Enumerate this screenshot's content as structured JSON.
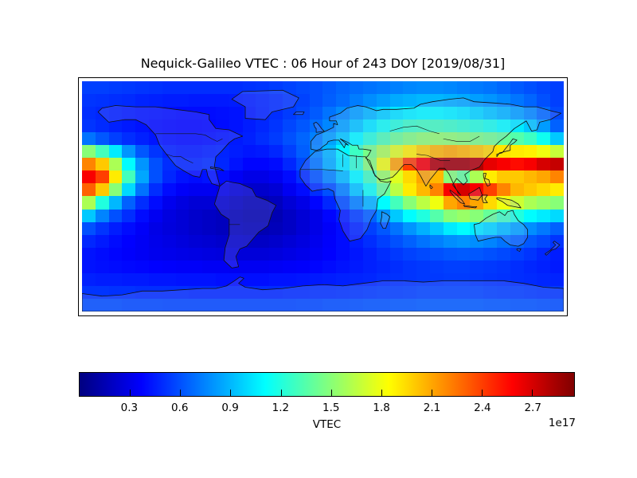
{
  "figure": {
    "background": "#ffffff",
    "frame_color": "#000000",
    "text_color": "#000000"
  },
  "chart_data": {
    "type": "heatmap",
    "title": "Nequick-Galileo VTEC : 06 Hour of 243 DOY [2019/08/31]",
    "colormap": "jet",
    "legend_position": "bottom-horizontal-colorbar",
    "colorbar_label": "VTEC",
    "colorbar_exponent": "1e17",
    "colorbar_ticks": [
      0.3,
      0.6,
      0.9,
      1.2,
      1.5,
      1.8,
      2.1,
      2.4,
      2.7
    ],
    "vmin": 0.0,
    "vmax": 2.95,
    "lon_range": [
      -180,
      180
    ],
    "lat_range": [
      90,
      -90
    ],
    "grid_overlay": "world-coastlines-and-borders",
    "grid": {
      "n_lon": 36,
      "n_lat": 18,
      "lat_order": "north-to-south",
      "values_unit_multiplier": "1e17",
      "values": [
        [
          0.55,
          0.55,
          0.54,
          0.53,
          0.52,
          0.51,
          0.5,
          0.5,
          0.5,
          0.5,
          0.5,
          0.5,
          0.51,
          0.52,
          0.54,
          0.56,
          0.58,
          0.6,
          0.63,
          0.66,
          0.68,
          0.7,
          0.72,
          0.74,
          0.76,
          0.77,
          0.77,
          0.76,
          0.74,
          0.72,
          0.7,
          0.67,
          0.63,
          0.6,
          0.57,
          0.55
        ],
        [
          0.52,
          0.51,
          0.5,
          0.49,
          0.47,
          0.46,
          0.45,
          0.45,
          0.44,
          0.44,
          0.44,
          0.45,
          0.46,
          0.48,
          0.5,
          0.53,
          0.56,
          0.6,
          0.64,
          0.68,
          0.73,
          0.78,
          0.82,
          0.86,
          0.88,
          0.9,
          0.9,
          0.88,
          0.86,
          0.83,
          0.8,
          0.76,
          0.71,
          0.66,
          0.6,
          0.55
        ],
        [
          0.5,
          0.48,
          0.46,
          0.44,
          0.43,
          0.42,
          0.41,
          0.4,
          0.4,
          0.4,
          0.41,
          0.42,
          0.44,
          0.47,
          0.5,
          0.54,
          0.58,
          0.63,
          0.7,
          0.77,
          0.84,
          0.91,
          0.98,
          1.04,
          1.08,
          1.1,
          1.1,
          1.08,
          1.05,
          1.0,
          0.95,
          0.9,
          0.84,
          0.77,
          0.68,
          0.58
        ],
        [
          0.52,
          0.49,
          0.46,
          0.44,
          0.42,
          0.4,
          0.39,
          0.38,
          0.38,
          0.39,
          0.4,
          0.42,
          0.45,
          0.48,
          0.52,
          0.57,
          0.62,
          0.68,
          0.76,
          0.85,
          0.95,
          1.05,
          1.15,
          1.22,
          1.28,
          1.3,
          1.3,
          1.28,
          1.25,
          1.22,
          1.18,
          1.12,
          1.05,
          0.95,
          0.82,
          0.65
        ],
        [
          0.7,
          0.62,
          0.55,
          0.5,
          0.46,
          0.43,
          0.41,
          0.4,
          0.4,
          0.41,
          0.43,
          0.44,
          0.46,
          0.5,
          0.54,
          0.6,
          0.66,
          0.74,
          0.84,
          0.96,
          1.1,
          1.22,
          1.33,
          1.42,
          1.48,
          1.52,
          1.53,
          1.52,
          1.5,
          1.47,
          1.44,
          1.4,
          1.35,
          1.28,
          1.15,
          0.95
        ],
        [
          1.5,
          1.3,
          1.05,
          0.8,
          0.62,
          0.52,
          0.46,
          0.44,
          0.44,
          0.46,
          0.47,
          0.45,
          0.43,
          0.44,
          0.48,
          0.55,
          0.64,
          0.76,
          0.9,
          1.08,
          1.28,
          1.45,
          1.6,
          1.75,
          1.88,
          1.98,
          2.05,
          2.08,
          2.05,
          2.0,
          1.95,
          1.92,
          1.9,
          1.88,
          1.8,
          1.68
        ],
        [
          2.2,
          2.0,
          1.6,
          1.1,
          0.8,
          0.6,
          0.5,
          0.48,
          0.48,
          0.5,
          0.48,
          0.42,
          0.38,
          0.38,
          0.4,
          0.48,
          0.58,
          0.72,
          0.88,
          1.05,
          1.25,
          1.5,
          1.8,
          2.1,
          2.4,
          2.6,
          2.8,
          2.85,
          2.85,
          2.8,
          2.65,
          2.6,
          2.55,
          2.6,
          2.7,
          2.75
        ],
        [
          2.6,
          2.4,
          1.9,
          1.3,
          0.85,
          0.6,
          0.48,
          0.42,
          0.4,
          0.42,
          0.4,
          0.34,
          0.3,
          0.3,
          0.33,
          0.4,
          0.5,
          0.62,
          0.76,
          0.92,
          1.1,
          1.3,
          1.55,
          1.75,
          1.95,
          2.1,
          2.05,
          1.5,
          1.4,
          1.6,
          1.9,
          2.0,
          2.0,
          2.05,
          2.1,
          2.2
        ],
        [
          2.3,
          2.0,
          1.5,
          1.0,
          0.7,
          0.5,
          0.4,
          0.35,
          0.33,
          0.33,
          0.3,
          0.25,
          0.22,
          0.22,
          0.25,
          0.33,
          0.4,
          0.5,
          0.6,
          0.75,
          0.95,
          1.15,
          1.4,
          1.65,
          1.9,
          2.05,
          2.2,
          2.6,
          2.7,
          2.6,
          2.4,
          2.2,
          2.05,
          2.0,
          1.95,
          1.9
        ],
        [
          1.6,
          1.2,
          0.9,
          0.65,
          0.5,
          0.4,
          0.32,
          0.28,
          0.25,
          0.25,
          0.22,
          0.18,
          0.15,
          0.15,
          0.18,
          0.25,
          0.3,
          0.38,
          0.48,
          0.6,
          0.75,
          0.9,
          1.1,
          1.3,
          1.5,
          1.65,
          1.8,
          2.1,
          2.2,
          2.1,
          1.95,
          1.8,
          1.7,
          1.6,
          1.55,
          1.5
        ],
        [
          0.95,
          0.75,
          0.6,
          0.5,
          0.4,
          0.33,
          0.28,
          0.25,
          0.22,
          0.2,
          0.18,
          0.15,
          0.13,
          0.13,
          0.15,
          0.2,
          0.25,
          0.3,
          0.38,
          0.45,
          0.55,
          0.65,
          0.8,
          0.95,
          1.1,
          1.2,
          1.35,
          1.5,
          1.55,
          1.5,
          1.4,
          1.3,
          1.2,
          1.1,
          1.05,
          1.0
        ],
        [
          0.6,
          0.52,
          0.45,
          0.4,
          0.35,
          0.3,
          0.27,
          0.25,
          0.22,
          0.2,
          0.18,
          0.17,
          0.15,
          0.15,
          0.17,
          0.2,
          0.25,
          0.3,
          0.35,
          0.4,
          0.48,
          0.55,
          0.62,
          0.7,
          0.8,
          0.88,
          0.95,
          1.05,
          1.1,
          1.05,
          1.0,
          0.92,
          0.85,
          0.78,
          0.72,
          0.65
        ],
        [
          0.48,
          0.44,
          0.4,
          0.37,
          0.34,
          0.31,
          0.29,
          0.27,
          0.25,
          0.24,
          0.22,
          0.21,
          0.2,
          0.2,
          0.22,
          0.25,
          0.28,
          0.32,
          0.36,
          0.4,
          0.45,
          0.5,
          0.55,
          0.6,
          0.65,
          0.7,
          0.74,
          0.78,
          0.8,
          0.78,
          0.75,
          0.7,
          0.66,
          0.62,
          0.58,
          0.52
        ],
        [
          0.42,
          0.4,
          0.38,
          0.36,
          0.34,
          0.32,
          0.31,
          0.3,
          0.29,
          0.28,
          0.27,
          0.26,
          0.26,
          0.26,
          0.27,
          0.29,
          0.31,
          0.34,
          0.37,
          0.4,
          0.43,
          0.46,
          0.5,
          0.53,
          0.56,
          0.58,
          0.6,
          0.62,
          0.63,
          0.62,
          0.6,
          0.58,
          0.55,
          0.52,
          0.48,
          0.45
        ],
        [
          0.42,
          0.41,
          0.4,
          0.39,
          0.38,
          0.37,
          0.36,
          0.35,
          0.35,
          0.34,
          0.34,
          0.33,
          0.33,
          0.33,
          0.34,
          0.35,
          0.36,
          0.38,
          0.4,
          0.42,
          0.44,
          0.46,
          0.48,
          0.5,
          0.52,
          0.53,
          0.54,
          0.55,
          0.55,
          0.54,
          0.53,
          0.52,
          0.5,
          0.48,
          0.46,
          0.44
        ],
        [
          0.46,
          0.45,
          0.45,
          0.44,
          0.44,
          0.43,
          0.43,
          0.42,
          0.42,
          0.42,
          0.41,
          0.41,
          0.41,
          0.41,
          0.42,
          0.42,
          0.43,
          0.44,
          0.45,
          0.46,
          0.47,
          0.48,
          0.5,
          0.51,
          0.52,
          0.53,
          0.53,
          0.54,
          0.54,
          0.53,
          0.52,
          0.51,
          0.5,
          0.49,
          0.48,
          0.47
        ],
        [
          0.52,
          0.52,
          0.51,
          0.51,
          0.5,
          0.5,
          0.5,
          0.5,
          0.49,
          0.49,
          0.49,
          0.49,
          0.49,
          0.49,
          0.49,
          0.5,
          0.5,
          0.51,
          0.51,
          0.52,
          0.53,
          0.54,
          0.55,
          0.55,
          0.56,
          0.57,
          0.57,
          0.57,
          0.57,
          0.57,
          0.56,
          0.55,
          0.55,
          0.54,
          0.53,
          0.53
        ],
        [
          0.6,
          0.6,
          0.6,
          0.59,
          0.59,
          0.59,
          0.58,
          0.58,
          0.58,
          0.58,
          0.58,
          0.58,
          0.58,
          0.58,
          0.58,
          0.58,
          0.59,
          0.59,
          0.6,
          0.6,
          0.61,
          0.62,
          0.62,
          0.63,
          0.63,
          0.64,
          0.64,
          0.64,
          0.64,
          0.64,
          0.63,
          0.63,
          0.62,
          0.62,
          0.61,
          0.6
        ]
      ]
    }
  }
}
